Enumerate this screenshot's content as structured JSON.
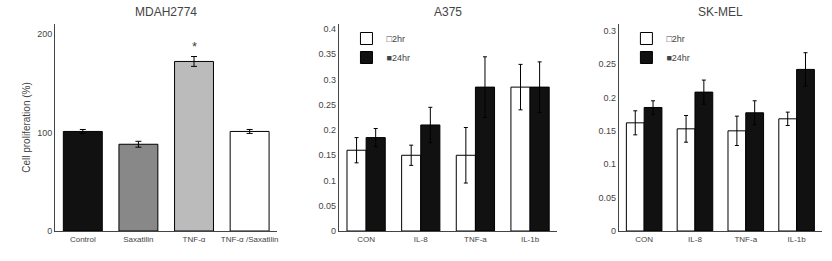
{
  "chart_data": [
    {
      "type": "bar",
      "title": "MDAH2774",
      "categories": [
        "Control",
        "Saxatilin",
        "TNF-α",
        "TNF-α /Saxatilin"
      ],
      "values": [
        101,
        88,
        172,
        101
      ],
      "errors": [
        2,
        3,
        5,
        2
      ],
      "colors": [
        "#111111",
        "#888888",
        "#bbbbbb",
        "#ffffff"
      ],
      "ylabel": "Cell proliferation (%)",
      "ylim": [
        0,
        210
      ],
      "yticks": [
        0,
        100,
        200
      ],
      "grid": false,
      "annotations": [
        {
          "category": "TNF-α",
          "text": "*"
        }
      ]
    },
    {
      "type": "bar",
      "title": "A375",
      "categories": [
        "CON",
        "IL-8",
        "TNF-a",
        "IL-1b"
      ],
      "series": [
        {
          "name": "□2hr",
          "color": "#ffffff",
          "values": [
            0.16,
            0.15,
            0.15,
            0.285
          ],
          "errors": [
            0.025,
            0.02,
            0.055,
            0.045
          ]
        },
        {
          "name": "■24hr",
          "color": "#111111",
          "values": [
            0.185,
            0.21,
            0.285,
            0.285
          ],
          "errors": [
            0.018,
            0.035,
            0.06,
            0.05
          ]
        }
      ],
      "ylim": [
        0,
        0.41
      ],
      "yticks": [
        0,
        0.05,
        0.1,
        0.15,
        0.2,
        0.25,
        0.3,
        0.35,
        0.4
      ],
      "grid": false,
      "legend": "upper left"
    },
    {
      "type": "bar",
      "title": "SK-MEL",
      "categories": [
        "CON",
        "IL-8",
        "TNF-a",
        "IL-1b"
      ],
      "series": [
        {
          "name": "□2hr",
          "color": "#ffffff",
          "values": [
            0.162,
            0.153,
            0.15,
            0.168
          ],
          "errors": [
            0.018,
            0.02,
            0.022,
            0.01
          ]
        },
        {
          "name": "■24hr",
          "color": "#111111",
          "values": [
            0.185,
            0.208,
            0.177,
            0.242
          ],
          "errors": [
            0.01,
            0.018,
            0.018,
            0.025
          ]
        }
      ],
      "ylim": [
        0,
        0.31
      ],
      "yticks": [
        0,
        0.05,
        0.1,
        0.15,
        0.2,
        0.25,
        0.3
      ],
      "grid": false,
      "legend": "upper left"
    }
  ]
}
